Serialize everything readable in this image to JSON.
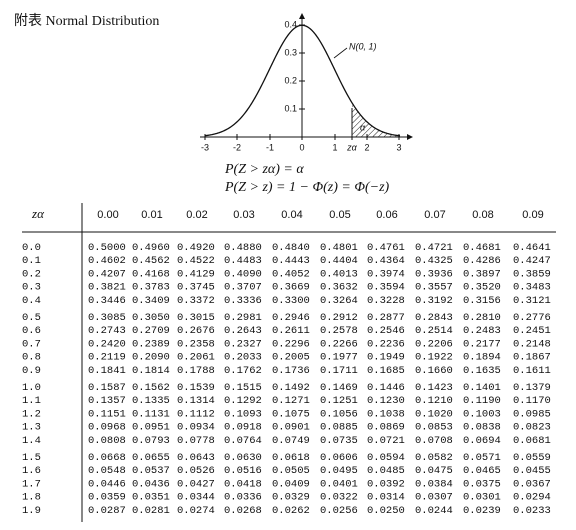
{
  "header": {
    "title": "附表 Normal Distribution"
  },
  "figure": {
    "curve_label": "N(0, 1)",
    "alpha_label": "α",
    "yticks": [
      "0.4",
      "0.3",
      "0.2",
      "0.1"
    ],
    "xticks": [
      "-3",
      "-2",
      "-1",
      "0",
      "1",
      "zα",
      "2",
      "3"
    ]
  },
  "formulas": [
    "P(Z > zα) = α",
    "P(Z > z) = 1 − Φ(z) = Φ(−z)"
  ],
  "table": {
    "header": [
      "zα",
      "0.00",
      "0.01",
      "0.02",
      "0.03",
      "0.04",
      "0.05",
      "0.06",
      "0.07",
      "0.08",
      "0.09"
    ],
    "rows": [
      [
        "0.0",
        "0.5000",
        "0.4960",
        "0.4920",
        "0.4880",
        "0.4840",
        "0.4801",
        "0.4761",
        "0.4721",
        "0.4681",
        "0.4641"
      ],
      [
        "0.1",
        "0.4602",
        "0.4562",
        "0.4522",
        "0.4483",
        "0.4443",
        "0.4404",
        "0.4364",
        "0.4325",
        "0.4286",
        "0.4247"
      ],
      [
        "0.2",
        "0.4207",
        "0.4168",
        "0.4129",
        "0.4090",
        "0.4052",
        "0.4013",
        "0.3974",
        "0.3936",
        "0.3897",
        "0.3859"
      ],
      [
        "0.3",
        "0.3821",
        "0.3783",
        "0.3745",
        "0.3707",
        "0.3669",
        "0.3632",
        "0.3594",
        "0.3557",
        "0.3520",
        "0.3483"
      ],
      [
        "0.4",
        "0.3446",
        "0.3409",
        "0.3372",
        "0.3336",
        "0.3300",
        "0.3264",
        "0.3228",
        "0.3192",
        "0.3156",
        "0.3121"
      ],
      [
        "0.5",
        "0.3085",
        "0.3050",
        "0.3015",
        "0.2981",
        "0.2946",
        "0.2912",
        "0.2877",
        "0.2843",
        "0.2810",
        "0.2776"
      ],
      [
        "0.6",
        "0.2743",
        "0.2709",
        "0.2676",
        "0.2643",
        "0.2611",
        "0.2578",
        "0.2546",
        "0.2514",
        "0.2483",
        "0.2451"
      ],
      [
        "0.7",
        "0.2420",
        "0.2389",
        "0.2358",
        "0.2327",
        "0.2296",
        "0.2266",
        "0.2236",
        "0.2206",
        "0.2177",
        "0.2148"
      ],
      [
        "0.8",
        "0.2119",
        "0.2090",
        "0.2061",
        "0.2033",
        "0.2005",
        "0.1977",
        "0.1949",
        "0.1922",
        "0.1894",
        "0.1867"
      ],
      [
        "0.9",
        "0.1841",
        "0.1814",
        "0.1788",
        "0.1762",
        "0.1736",
        "0.1711",
        "0.1685",
        "0.1660",
        "0.1635",
        "0.1611"
      ],
      [
        "1.0",
        "0.1587",
        "0.1562",
        "0.1539",
        "0.1515",
        "0.1492",
        "0.1469",
        "0.1446",
        "0.1423",
        "0.1401",
        "0.1379"
      ],
      [
        "1.1",
        "0.1357",
        "0.1335",
        "0.1314",
        "0.1292",
        "0.1271",
        "0.1251",
        "0.1230",
        "0.1210",
        "0.1190",
        "0.1170"
      ],
      [
        "1.2",
        "0.1151",
        "0.1131",
        "0.1112",
        "0.1093",
        "0.1075",
        "0.1056",
        "0.1038",
        "0.1020",
        "0.1003",
        "0.0985"
      ],
      [
        "1.3",
        "0.0968",
        "0.0951",
        "0.0934",
        "0.0918",
        "0.0901",
        "0.0885",
        "0.0869",
        "0.0853",
        "0.0838",
        "0.0823"
      ],
      [
        "1.4",
        "0.0808",
        "0.0793",
        "0.0778",
        "0.0764",
        "0.0749",
        "0.0735",
        "0.0721",
        "0.0708",
        "0.0694",
        "0.0681"
      ],
      [
        "1.5",
        "0.0668",
        "0.0655",
        "0.0643",
        "0.0630",
        "0.0618",
        "0.0606",
        "0.0594",
        "0.0582",
        "0.0571",
        "0.0559"
      ],
      [
        "1.6",
        "0.0548",
        "0.0537",
        "0.0526",
        "0.0516",
        "0.0505",
        "0.0495",
        "0.0485",
        "0.0475",
        "0.0465",
        "0.0455"
      ],
      [
        "1.7",
        "0.0446",
        "0.0436",
        "0.0427",
        "0.0418",
        "0.0409",
        "0.0401",
        "0.0392",
        "0.0384",
        "0.0375",
        "0.0367"
      ],
      [
        "1.8",
        "0.0359",
        "0.0351",
        "0.0344",
        "0.0336",
        "0.0329",
        "0.0322",
        "0.0314",
        "0.0307",
        "0.0301",
        "0.0294"
      ],
      [
        "1.9",
        "0.0287",
        "0.0281",
        "0.0274",
        "0.0268",
        "0.0262",
        "0.0256",
        "0.0250",
        "0.0244",
        "0.0239",
        "0.0233"
      ]
    ]
  }
}
